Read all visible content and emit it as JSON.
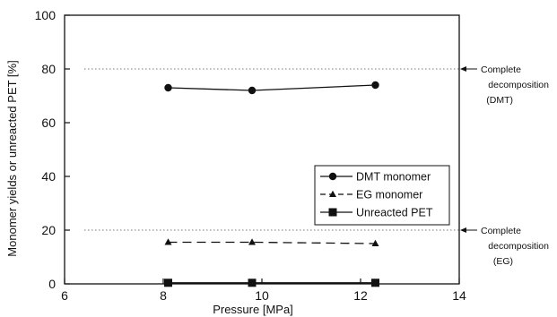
{
  "chart_data": {
    "type": "line",
    "title": "",
    "xlabel": "Pressure [MPa]",
    "ylabel": "Monomer yields or unreacted PET [%]",
    "xlim": [
      6,
      14
    ],
    "ylim": [
      0,
      100
    ],
    "xticks": [
      6,
      8,
      10,
      12,
      14
    ],
    "yticks": [
      0,
      20,
      40,
      60,
      80,
      100
    ],
    "grid": false,
    "legend_position": "center-right",
    "series": [
      {
        "name": "DMT monomer",
        "marker": "circle",
        "line": "solid",
        "x": [
          8.1,
          9.8,
          12.3
        ],
        "y": [
          73,
          72,
          74
        ]
      },
      {
        "name": "EG monomer",
        "marker": "triangle",
        "line": "dashed",
        "x": [
          8.1,
          9.8,
          12.3
        ],
        "y": [
          15.5,
          15.5,
          15
        ]
      },
      {
        "name": "Unreacted PET",
        "marker": "square",
        "line": "solid",
        "x": [
          8.1,
          9.8,
          12.3
        ],
        "y": [
          0.4,
          0.4,
          0.4
        ]
      }
    ],
    "reference_lines": [
      {
        "y": 80,
        "style": "dotted",
        "label_lines": [
          "Complete",
          "decomposition",
          "(DMT)"
        ]
      },
      {
        "y": 20,
        "style": "dotted",
        "label_lines": [
          "Complete",
          "decomposition",
          "(EG)"
        ]
      }
    ]
  }
}
